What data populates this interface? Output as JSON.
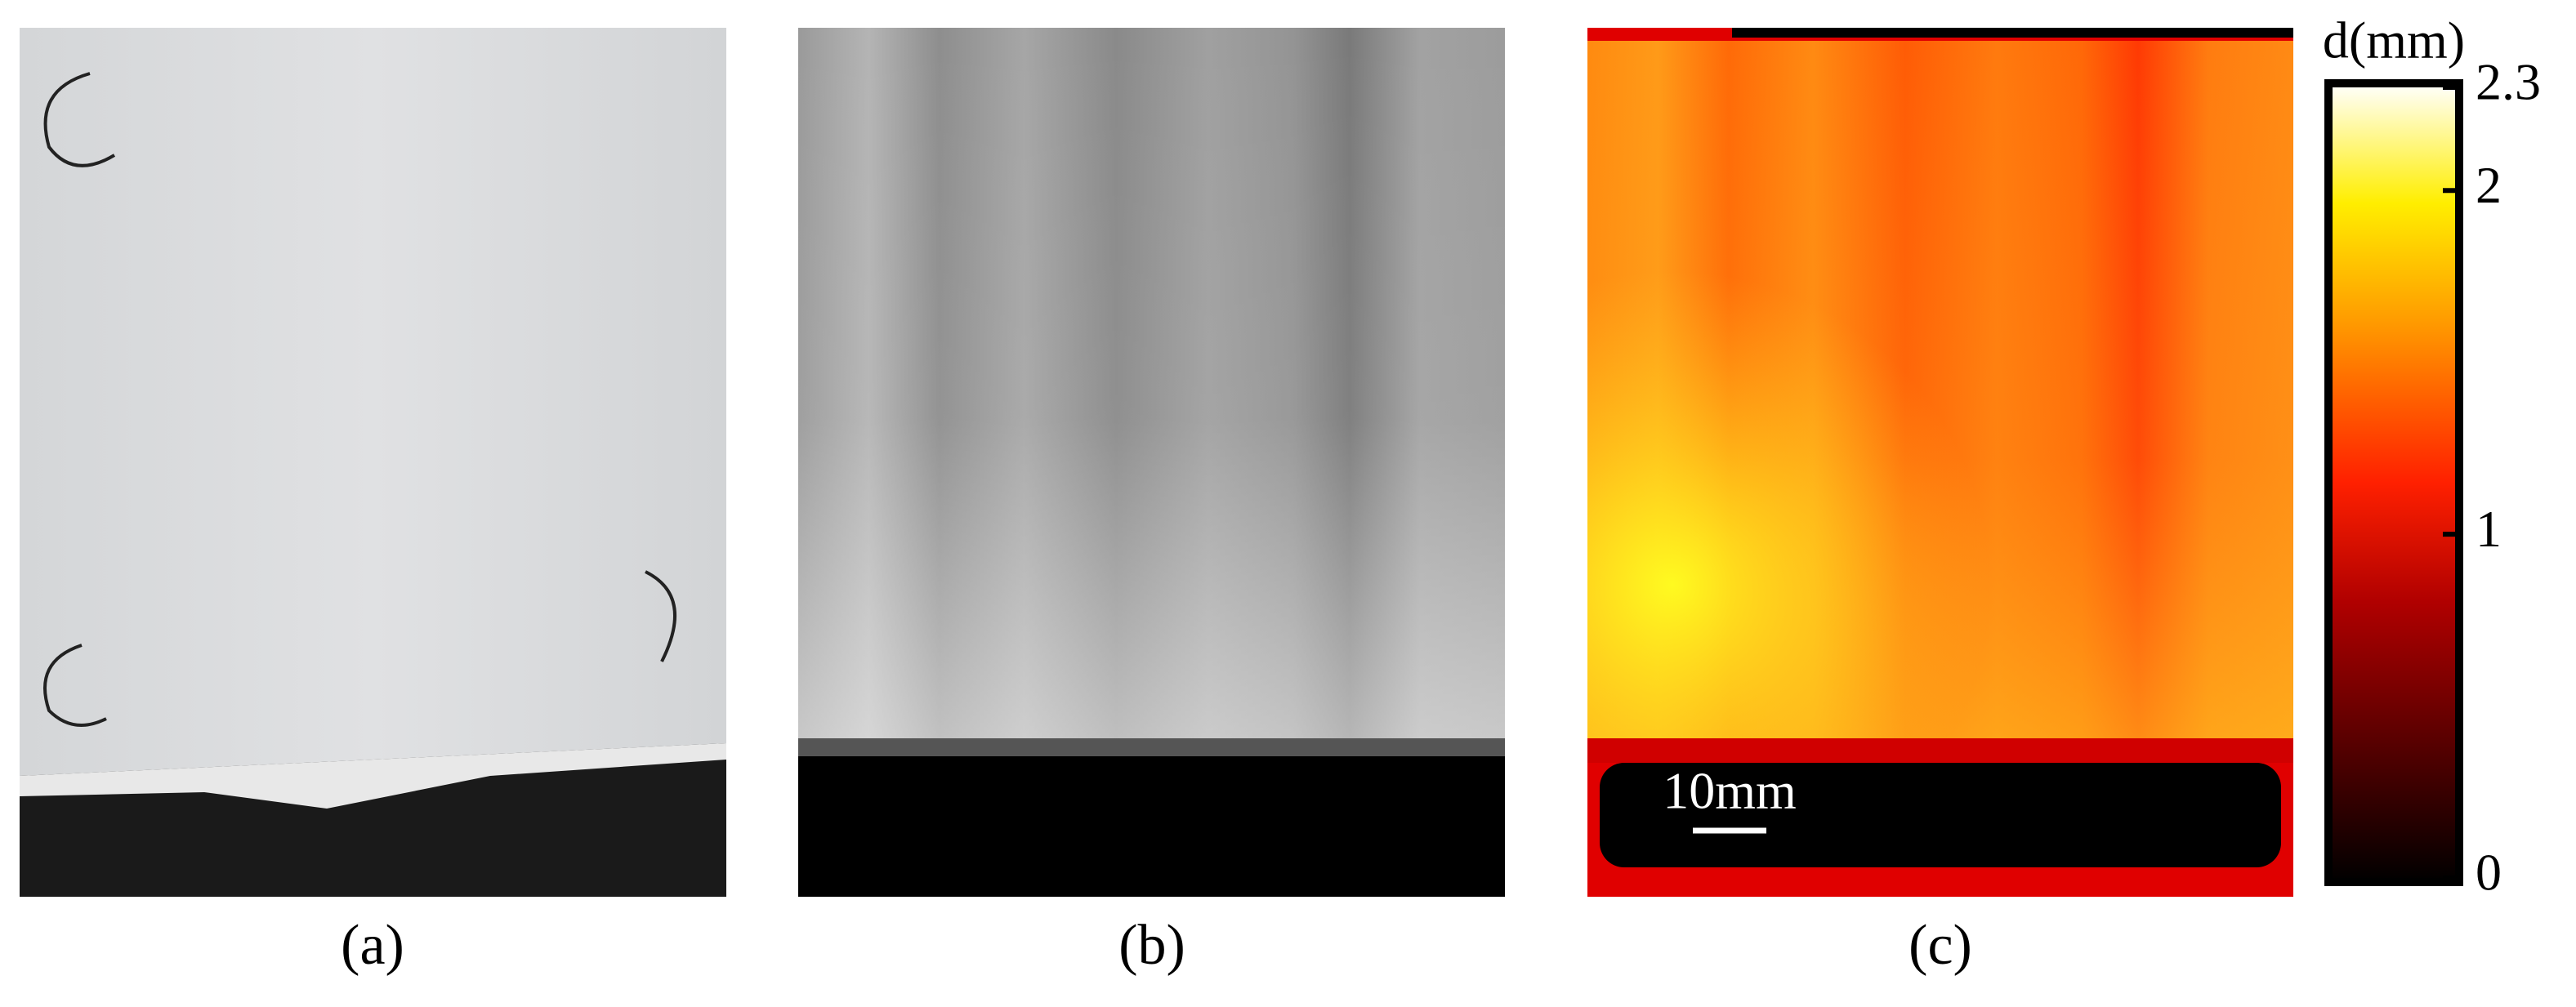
{
  "panels": [
    {
      "label": "(a)"
    },
    {
      "label": "(b)"
    },
    {
      "label": "(c)",
      "scale_bar": "10mm"
    }
  ],
  "colorbar": {
    "title": "d(mm)",
    "lim": [
      0,
      2.3
    ],
    "ticks": [
      0,
      1,
      2,
      2.3
    ]
  }
}
